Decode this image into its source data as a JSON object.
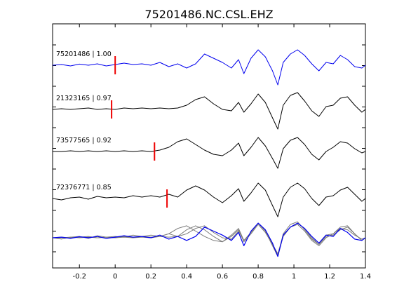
{
  "chart_data": {
    "type": "line",
    "title": "75201486.NC.CSL.EHZ",
    "xlabel": "",
    "ylabel": "",
    "xlim": [
      -0.35,
      1.4
    ],
    "grid": false,
    "x_ticks": [
      "-0.2",
      "0",
      "0.2",
      "0.4",
      "0.6",
      "0.8",
      "1",
      "1.2",
      "1.4"
    ],
    "colors": {
      "reference": "#0000ee",
      "match": "#000000",
      "overlay_match": "#7a7a7a",
      "pick": "#ee0000"
    },
    "series": [
      {
        "name": "75201486 | 1.00",
        "pick_time": 0.0,
        "x": [
          -0.35,
          -0.3,
          -0.25,
          -0.2,
          -0.15,
          -0.1,
          -0.05,
          0,
          0.05,
          0.1,
          0.15,
          0.2,
          0.25,
          0.3,
          0.35,
          0.4,
          0.45,
          0.5,
          0.55,
          0.6,
          0.65,
          0.69,
          0.72,
          0.76,
          0.8,
          0.84,
          0.88,
          0.91,
          0.94,
          0.98,
          1.02,
          1.06,
          1.1,
          1.14,
          1.18,
          1.22,
          1.26,
          1.3,
          1.34,
          1.38,
          1.4
        ],
        "y": [
          0,
          0.05,
          -0.05,
          0.08,
          0,
          0.1,
          -0.05,
          0.05,
          0.15,
          0.05,
          0.1,
          0,
          0.2,
          -0.1,
          0.1,
          -0.2,
          0.1,
          0.8,
          0.5,
          0.2,
          -0.2,
          0.4,
          -0.6,
          0.5,
          1.1,
          0.6,
          -0.4,
          -1.4,
          0.2,
          0.8,
          1.1,
          0.7,
          0.1,
          -0.4,
          0.2,
          0.1,
          0.7,
          0.4,
          -0.1,
          -0.2,
          0
        ]
      },
      {
        "name": "21323165 | 0.97",
        "pick_time": -0.02,
        "x": [
          -0.35,
          -0.3,
          -0.25,
          -0.2,
          -0.15,
          -0.1,
          -0.05,
          0,
          0.05,
          0.1,
          0.15,
          0.2,
          0.25,
          0.3,
          0.35,
          0.4,
          0.45,
          0.5,
          0.55,
          0.6,
          0.65,
          0.69,
          0.72,
          0.76,
          0.8,
          0.84,
          0.88,
          0.91,
          0.94,
          0.98,
          1.02,
          1.06,
          1.1,
          1.14,
          1.18,
          1.22,
          1.26,
          1.3,
          1.34,
          1.38,
          1.4
        ],
        "y": [
          0,
          0.05,
          0,
          0.05,
          0.1,
          0,
          0.05,
          0,
          0.1,
          0.05,
          0.1,
          0.05,
          0.1,
          0.05,
          0.1,
          0.3,
          0.7,
          0.9,
          0.4,
          0,
          -0.1,
          0.5,
          -0.2,
          0.4,
          1.1,
          0.5,
          -0.6,
          -1.4,
          0.3,
          1,
          1.2,
          0.6,
          -0.1,
          -0.5,
          0.2,
          0.3,
          0.8,
          0.9,
          0.3,
          -0.2,
          0
        ]
      },
      {
        "name": "73577565 | 0.92",
        "pick_time": 0.22,
        "x": [
          -0.35,
          -0.3,
          -0.25,
          -0.2,
          -0.15,
          -0.1,
          -0.05,
          0,
          0.05,
          0.1,
          0.15,
          0.2,
          0.25,
          0.3,
          0.35,
          0.4,
          0.45,
          0.5,
          0.55,
          0.6,
          0.65,
          0.69,
          0.72,
          0.76,
          0.8,
          0.84,
          0.88,
          0.91,
          0.94,
          0.98,
          1.02,
          1.06,
          1.1,
          1.14,
          1.18,
          1.22,
          1.26,
          1.3,
          1.34,
          1.38,
          1.4
        ],
        "y": [
          0,
          0,
          0.05,
          0,
          0.05,
          0,
          0.05,
          0,
          0.05,
          0,
          0.05,
          0,
          0.1,
          0.3,
          0.7,
          0.9,
          0.5,
          0.1,
          -0.2,
          -0.3,
          0.1,
          0.6,
          -0.3,
          0.3,
          1,
          0.4,
          -0.5,
          -1.2,
          0.2,
          0.8,
          1,
          0.5,
          -0.2,
          -0.6,
          0,
          0.3,
          0.7,
          0.6,
          0.2,
          -0.1,
          0
        ]
      },
      {
        "name": "72376771 | 0.85",
        "pick_time": 0.29,
        "x": [
          -0.35,
          -0.3,
          -0.25,
          -0.2,
          -0.15,
          -0.1,
          -0.05,
          0,
          0.05,
          0.1,
          0.15,
          0.2,
          0.25,
          0.3,
          0.35,
          0.4,
          0.45,
          0.5,
          0.55,
          0.6,
          0.65,
          0.69,
          0.72,
          0.76,
          0.8,
          0.84,
          0.88,
          0.91,
          0.94,
          0.98,
          1.02,
          1.06,
          1.1,
          1.14,
          1.18,
          1.22,
          1.26,
          1.3,
          1.34,
          1.38,
          1.4
        ],
        "y": [
          0,
          -0.1,
          0.05,
          0.1,
          -0.05,
          0.15,
          0.05,
          0.1,
          0.05,
          0.2,
          0.1,
          0.2,
          0.1,
          0.3,
          0.1,
          0.6,
          0.9,
          0.6,
          0.1,
          -0.3,
          0.2,
          0.7,
          -0.2,
          0.4,
          1.1,
          0.6,
          -0.5,
          -1.3,
          0.1,
          0.8,
          1.1,
          0.7,
          0,
          -0.5,
          0.1,
          0.2,
          0.6,
          0.8,
          0.3,
          -0.2,
          0
        ]
      }
    ]
  }
}
